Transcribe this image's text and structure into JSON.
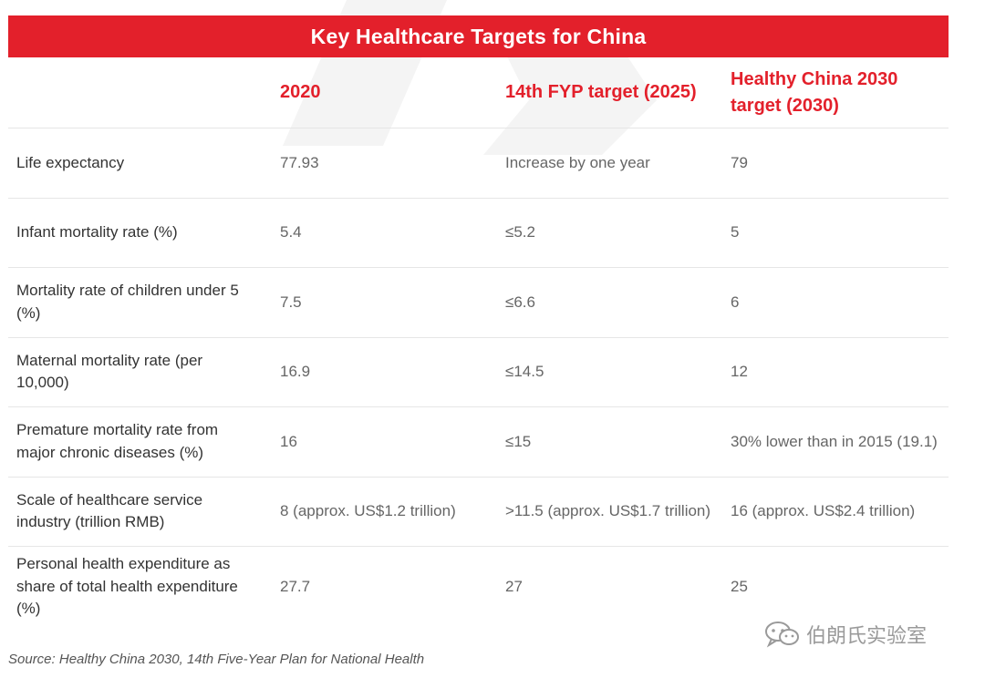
{
  "title": "Key Healthcare Targets for China",
  "columns": [
    "",
    "2020",
    "14th FYP target (2025)",
    "Healthy China 2030 target (2030)"
  ],
  "rows": [
    {
      "label": "Life expectancy",
      "v2020": "77.93",
      "v2025": "Increase by one year",
      "v2030": "79"
    },
    {
      "label": "Infant mortality rate (%)",
      "v2020": "5.4",
      "v2025": "≤5.2",
      "v2030": "5"
    },
    {
      "label": "Mortality rate of children under 5 (%)",
      "v2020": "7.5",
      "v2025": "≤6.6",
      "v2030": "6"
    },
    {
      "label": "Maternal mortality rate (per 10,000)",
      "v2020": "16.9",
      "v2025": "≤14.5",
      "v2030": "12"
    },
    {
      "label": "Premature mortality rate from major chronic diseases (%)",
      "v2020": "16",
      "v2025": "≤15",
      "v2030": "30% lower than in 2015 (19.1)"
    },
    {
      "label": "Scale of healthcare service industry (trillion RMB)",
      "v2020": "8 (approx. US$1.2 trillion)",
      "v2025": ">11.5 (approx. US$1.7 trillion)",
      "v2030": "16 (approx. US$2.4 trillion)"
    },
    {
      "label": "Personal health expenditure as share of total health expenditure (%)",
      "v2020": "27.7",
      "v2025": "27",
      "v2030": "25"
    }
  ],
  "source": "Source: Healthy China 2030, 14th Five-Year Plan for National Health",
  "brand": "伯朗氏实验室",
  "brand_icon": "wechat-icon",
  "colors": {
    "accent": "#e3202b",
    "text": "#333333",
    "muted": "#666666"
  }
}
